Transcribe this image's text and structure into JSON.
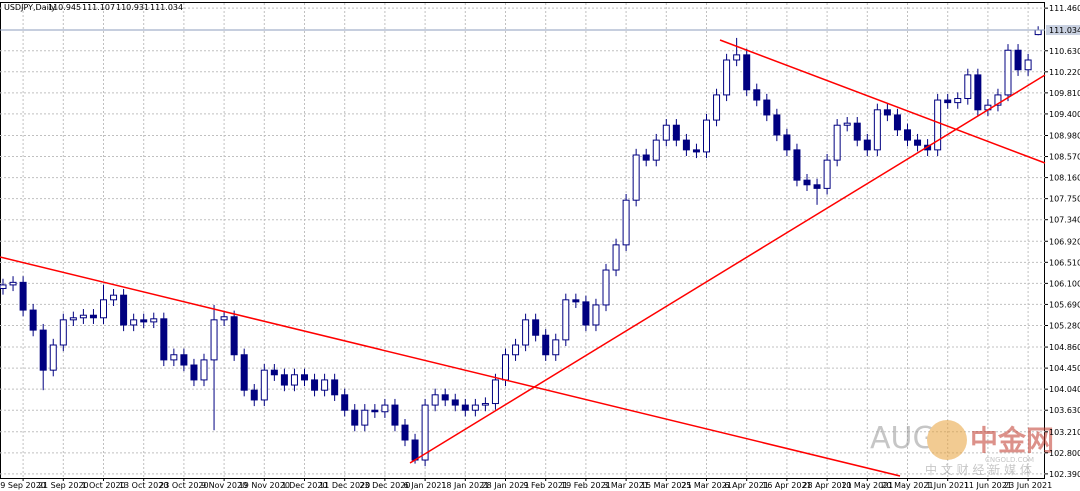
{
  "chart_data": {
    "type": "candlestick",
    "symbol": "USDJPY,Daily",
    "categories": [
      null,
      null,
      "9 Sep 2020",
      null,
      null,
      null,
      "21 Sep 2020",
      null,
      null,
      null,
      "1 Oct 2020",
      null,
      null,
      null,
      "13 Oct 2020",
      null,
      null,
      null,
      "23 Oct 2020",
      null,
      null,
      null,
      "9 Nov 2020",
      null,
      null,
      null,
      "19 Nov 2020",
      null,
      null,
      null,
      "1 Dec 2020",
      null,
      null,
      null,
      "11 Dec 2020",
      null,
      null,
      null,
      "23 Dec 2020",
      null,
      null,
      null,
      "6 Jan 2021",
      null,
      null,
      null,
      "18 Jan 2021",
      null,
      null,
      null,
      "28 Jan 2021",
      null,
      null,
      null,
      "9 Feb 2021",
      null,
      null,
      null,
      "19 Feb 2021",
      null,
      null,
      null,
      "3 Mar 2021",
      null,
      null,
      null,
      "15 Mar 2021",
      null,
      null,
      null,
      "25 Mar 2021",
      null,
      null,
      null,
      "6 Apr 2021",
      null,
      null,
      null,
      "16 Apr 2021",
      null,
      null,
      null,
      "28 Apr 2021",
      null,
      null,
      null,
      "10 May 2021",
      null,
      null,
      null,
      "20 May 2021",
      null,
      null,
      null,
      "1 Jun 2021",
      null,
      null,
      null,
      "11 Jun 2021",
      null,
      null,
      null,
      "23 Jun 2021",
      null
    ],
    "open": [
      106.0,
      106.07,
      106.12,
      105.58,
      105.19,
      104.41,
      104.9,
      105.39,
      105.43,
      105.48,
      105.43,
      105.78,
      105.87,
      105.29,
      105.39,
      105.35,
      105.41,
      104.61,
      104.71,
      104.51,
      104.22,
      104.61,
      105.39,
      105.45,
      104.71,
      104.02,
      103.83,
      104.41,
      104.32,
      104.12,
      104.32,
      104.22,
      104.02,
      104.22,
      103.93,
      103.63,
      103.34,
      103.63,
      103.6,
      103.73,
      103.34,
      103.05,
      102.66,
      103.73,
      103.93,
      103.83,
      103.73,
      103.63,
      103.73,
      103.76,
      104.22,
      104.71,
      104.9,
      105.39,
      105.09,
      104.71,
      105.0,
      105.78,
      105.74,
      105.29,
      105.68,
      106.36,
      106.85,
      107.72,
      108.6,
      108.5,
      108.89,
      109.18,
      108.89,
      108.7,
      108.66,
      109.28,
      109.77,
      110.45,
      110.55,
      109.87,
      109.67,
      109.38,
      108.99,
      108.7,
      108.11,
      108.02,
      107.95,
      108.5,
      109.18,
      109.22,
      108.89,
      108.7,
      109.48,
      109.38,
      109.09,
      108.89,
      108.79,
      108.7,
      109.67,
      109.62,
      109.7,
      110.16,
      109.48,
      109.57,
      109.77,
      110.64,
      110.26,
      110.945
    ],
    "high": [
      106.19,
      106.24,
      106.24,
      105.7,
      105.31,
      105.02,
      105.51,
      105.55,
      105.6,
      105.6,
      106.07,
      105.99,
      105.99,
      105.51,
      105.51,
      105.53,
      105.53,
      104.83,
      104.83,
      104.63,
      104.73,
      105.68,
      105.57,
      105.57,
      104.83,
      104.14,
      104.53,
      104.53,
      104.44,
      104.44,
      104.44,
      104.34,
      104.34,
      104.34,
      104.05,
      103.75,
      103.75,
      103.75,
      103.85,
      103.85,
      103.46,
      103.17,
      103.85,
      104.05,
      104.05,
      103.95,
      103.85,
      103.85,
      103.88,
      104.34,
      104.83,
      105.02,
      105.51,
      105.51,
      105.21,
      105.12,
      105.9,
      105.9,
      105.86,
      105.8,
      106.48,
      106.97,
      107.84,
      108.72,
      108.72,
      109.01,
      109.3,
      109.3,
      109.01,
      108.82,
      109.4,
      109.89,
      110.57,
      110.88,
      110.67,
      109.99,
      109.79,
      109.5,
      109.11,
      108.82,
      108.23,
      108.14,
      108.62,
      109.3,
      109.34,
      109.34,
      109.01,
      109.6,
      109.6,
      109.5,
      109.21,
      109.01,
      108.91,
      109.79,
      109.79,
      109.82,
      110.28,
      110.28,
      109.69,
      109.89,
      110.76,
      110.76,
      110.57,
      111.107
    ],
    "low": [
      105.88,
      105.95,
      105.46,
      105.07,
      104.02,
      104.29,
      104.78,
      105.27,
      105.31,
      105.31,
      105.31,
      105.66,
      105.17,
      105.17,
      105.23,
      105.23,
      104.49,
      104.49,
      104.39,
      104.1,
      104.1,
      103.24,
      105.27,
      104.59,
      103.9,
      103.71,
      103.71,
      104.2,
      104.0,
      104.0,
      104.1,
      103.9,
      103.9,
      103.81,
      103.51,
      103.22,
      103.22,
      103.48,
      103.48,
      103.22,
      102.93,
      102.59,
      102.54,
      103.61,
      103.71,
      103.61,
      103.51,
      103.51,
      103.61,
      103.64,
      104.1,
      104.59,
      104.78,
      104.97,
      104.59,
      104.59,
      104.88,
      105.62,
      105.17,
      105.17,
      105.56,
      106.24,
      106.73,
      107.6,
      108.38,
      108.38,
      108.77,
      108.77,
      108.58,
      108.54,
      108.54,
      109.16,
      109.65,
      110.33,
      109.75,
      109.55,
      109.26,
      108.87,
      108.58,
      107.99,
      107.9,
      107.63,
      107.83,
      108.38,
      109.06,
      108.77,
      108.58,
      108.58,
      109.26,
      108.97,
      108.77,
      108.67,
      108.58,
      108.58,
      109.5,
      109.5,
      109.58,
      109.36,
      109.36,
      109.45,
      109.65,
      110.14,
      110.14,
      110.931
    ],
    "close": [
      106.07,
      106.12,
      105.58,
      105.19,
      104.41,
      104.9,
      105.39,
      105.43,
      105.48,
      105.43,
      105.78,
      105.87,
      105.29,
      105.39,
      105.35,
      105.41,
      104.61,
      104.71,
      104.51,
      104.22,
      104.61,
      105.39,
      105.45,
      104.71,
      104.02,
      103.83,
      104.41,
      104.32,
      104.12,
      104.32,
      104.22,
      104.02,
      104.22,
      103.93,
      103.63,
      103.34,
      103.63,
      103.6,
      103.73,
      103.34,
      103.05,
      102.66,
      103.73,
      103.93,
      103.83,
      103.73,
      103.63,
      103.73,
      103.76,
      104.22,
      104.71,
      104.9,
      105.39,
      105.09,
      104.71,
      105.0,
      105.78,
      105.74,
      105.29,
      105.68,
      106.36,
      106.85,
      107.72,
      108.6,
      108.5,
      108.89,
      109.18,
      108.89,
      108.7,
      108.66,
      109.28,
      109.77,
      110.45,
      110.55,
      109.87,
      109.67,
      109.38,
      108.99,
      108.7,
      108.11,
      108.02,
      107.95,
      108.5,
      109.18,
      109.22,
      108.89,
      108.7,
      109.48,
      109.38,
      109.09,
      108.89,
      108.79,
      108.7,
      109.67,
      109.62,
      109.7,
      110.16,
      109.48,
      109.57,
      109.77,
      110.64,
      110.26,
      110.45,
      111.034
    ],
    "up_color": "#ffffff",
    "down_color": "#000080",
    "outline_color": "#000080",
    "current_price": 111.034,
    "ylim": [
      102.31,
      111.56
    ],
    "yticks": [
      {
        "value": 111.46,
        "label": "111.460"
      },
      {
        "value": 110.63,
        "label": "110.630"
      },
      {
        "value": 110.22,
        "label": "110.220"
      },
      {
        "value": 109.81,
        "label": "109.810"
      },
      {
        "value": 109.4,
        "label": "109.400"
      },
      {
        "value": 108.98,
        "label": "108.980"
      },
      {
        "value": 108.57,
        "label": "108.570"
      },
      {
        "value": 108.16,
        "label": "108.160"
      },
      {
        "value": 107.75,
        "label": "107.750"
      },
      {
        "value": 107.34,
        "label": "107.340"
      },
      {
        "value": 106.92,
        "label": "106.920"
      },
      {
        "value": 106.51,
        "label": "106.510"
      },
      {
        "value": 106.1,
        "label": "106.100"
      },
      {
        "value": 105.69,
        "label": "105.690"
      },
      {
        "value": 105.28,
        "label": "105.280"
      },
      {
        "value": 104.86,
        "label": "104.860"
      },
      {
        "value": 104.45,
        "label": "104.450"
      },
      {
        "value": 104.04,
        "label": "104.040"
      },
      {
        "value": 103.63,
        "label": "103.630"
      },
      {
        "value": 103.21,
        "label": "103.210"
      },
      {
        "value": 102.8,
        "label": "102.800"
      },
      {
        "value": 102.39,
        "label": "102.390"
      }
    ],
    "grid": true,
    "watermark": {
      "brand": "AUG",
      "name": "中金网",
      "site": "CNGOLD.COM",
      "slogan": "中 文 财 经 新 媒 体"
    }
  }
}
